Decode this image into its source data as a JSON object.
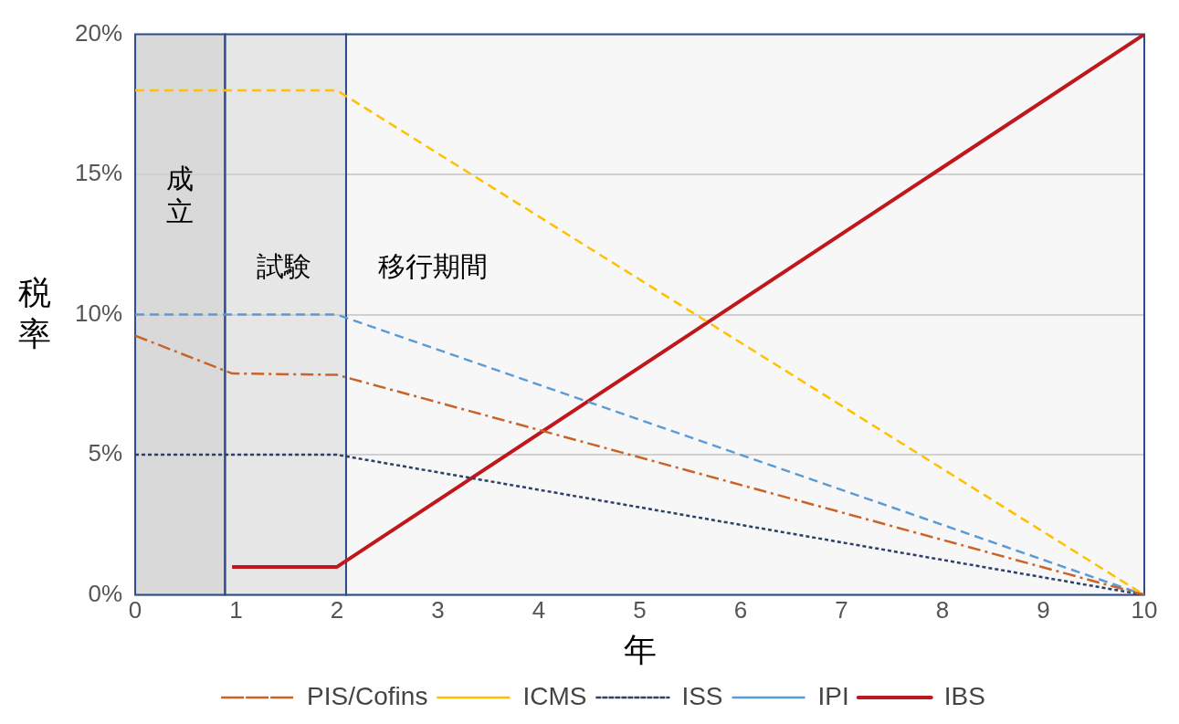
{
  "chart_data": {
    "type": "line",
    "xlabel": "年",
    "ylabel": "税率",
    "xlim": [
      0,
      10
    ],
    "xticks": [
      0,
      1,
      2,
      3,
      4,
      5,
      6,
      7,
      8,
      9,
      10
    ],
    "ylim": [
      0,
      20
    ],
    "yticks": [
      {
        "value": 0,
        "label": "0%"
      },
      {
        "value": 5,
        "label": "5%"
      },
      {
        "value": 10,
        "label": "10%"
      },
      {
        "value": 15,
        "label": "15%"
      },
      {
        "value": 20,
        "label": "20%"
      }
    ],
    "grid": "y",
    "legend": "bottom",
    "marker": "none",
    "bands": [
      {
        "axis": "x",
        "from": 0,
        "to": 0.89,
        "label": "成立",
        "color": "#d9d9d9"
      },
      {
        "axis": "x",
        "from": 0.89,
        "to": 2.09,
        "label": "試験",
        "color": "#e6e6e6"
      },
      {
        "axis": "x",
        "from": 2.09,
        "to": 10,
        "label": "移行期間",
        "color": "#f7f7f7"
      }
    ],
    "series": [
      {
        "name": "PIS/Cofins",
        "color": "#c8642a",
        "line_style": "dashdot",
        "x": [
          0,
          0.96,
          2,
          10
        ],
        "values": [
          9.25,
          7.9,
          7.85,
          0
        ]
      },
      {
        "name": "ICMS",
        "color": "#ffc000",
        "line_style": "dashed",
        "x": [
          0,
          2,
          10
        ],
        "values": [
          18,
          18,
          0
        ]
      },
      {
        "name": "ISS",
        "color": "#2e4068",
        "line_style": "dotted",
        "x": [
          0,
          2,
          10
        ],
        "values": [
          5,
          5,
          0
        ]
      },
      {
        "name": "IPI",
        "color": "#5b9bd5",
        "line_style": "dashed",
        "x": [
          0,
          2,
          10
        ],
        "values": [
          10,
          10,
          0
        ]
      },
      {
        "name": "IBS",
        "color": "#c0171c",
        "line_style": "solid",
        "x": [
          0.96,
          2,
          10
        ],
        "values": [
          1,
          1,
          20
        ]
      }
    ]
  }
}
